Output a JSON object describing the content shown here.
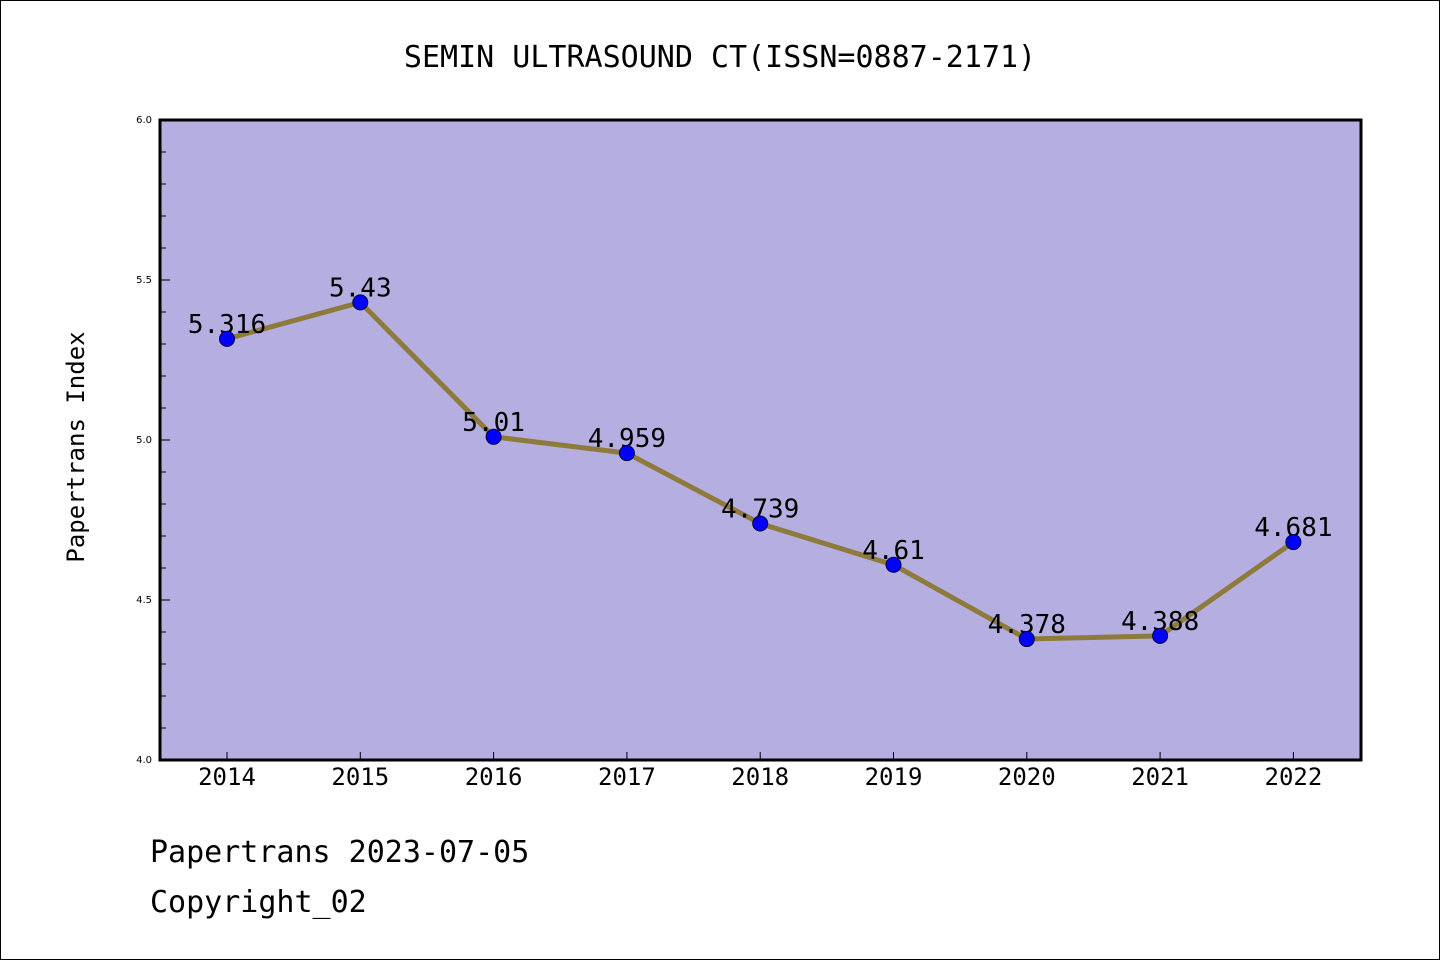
{
  "chart_data": {
    "type": "line",
    "title": "SEMIN ULTRASOUND CT(ISSN=0887-2171)",
    "ylabel": "Papertrans Index",
    "xlabel": "",
    "categories": [
      "2014",
      "2015",
      "2016",
      "2017",
      "2018",
      "2019",
      "2020",
      "2021",
      "2022"
    ],
    "values": [
      5.316,
      5.43,
      5.01,
      4.959,
      4.739,
      4.61,
      4.378,
      4.388,
      4.681
    ],
    "data_labels": [
      "5.316",
      "5.43",
      "5.01",
      "4.959",
      "4.739",
      "4.61",
      "4.378",
      "4.388",
      "4.681"
    ],
    "ylim": [
      4.0,
      6.0
    ],
    "yticks": [
      "4.0",
      "4.5",
      "5.0",
      "5.5",
      "6.0"
    ],
    "yticks_values": [
      4.0,
      4.5,
      5.0,
      5.5,
      6.0
    ],
    "grid": false,
    "colors": {
      "plot_background": "#b5afe1",
      "line": "#8e7a3a",
      "marker": "#0000ff"
    }
  },
  "footer": {
    "source": "Papertrans 2023-07-05",
    "copyright": "Copyright_02"
  }
}
